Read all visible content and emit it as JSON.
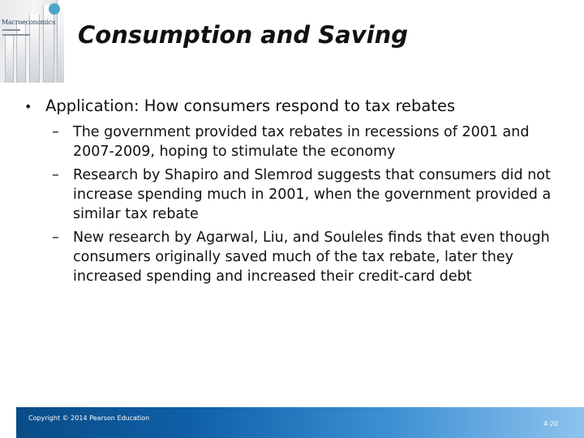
{
  "slide": {
    "title": "Consumption and Saving",
    "main_bullet": "Application: How consumers respond to tax rebates",
    "sub_bullets": [
      "The government provided tax rebates in recessions of 2001 and 2007-2009, hoping to stimulate the economy",
      "Research by Shapiro and Slemrod suggests that consumers did not increase spending much in 2001, when the government provided a similar tax rebate",
      "New research by Agarwal, Liu, and Souleles finds that even though consumers originally saved much of the tax rebate, later they increased spending and increased their credit-card debt"
    ]
  },
  "cover": {
    "title_text": "Macroeconomics",
    "icon": "book-cover-icon"
  },
  "footer": {
    "copyright": "Copyright © 2014 Pearson Education",
    "page_number": "4-20"
  },
  "colors": {
    "footer_dark": "#0a4c87",
    "footer_light": "#8ec3ee",
    "text": "#111111"
  }
}
